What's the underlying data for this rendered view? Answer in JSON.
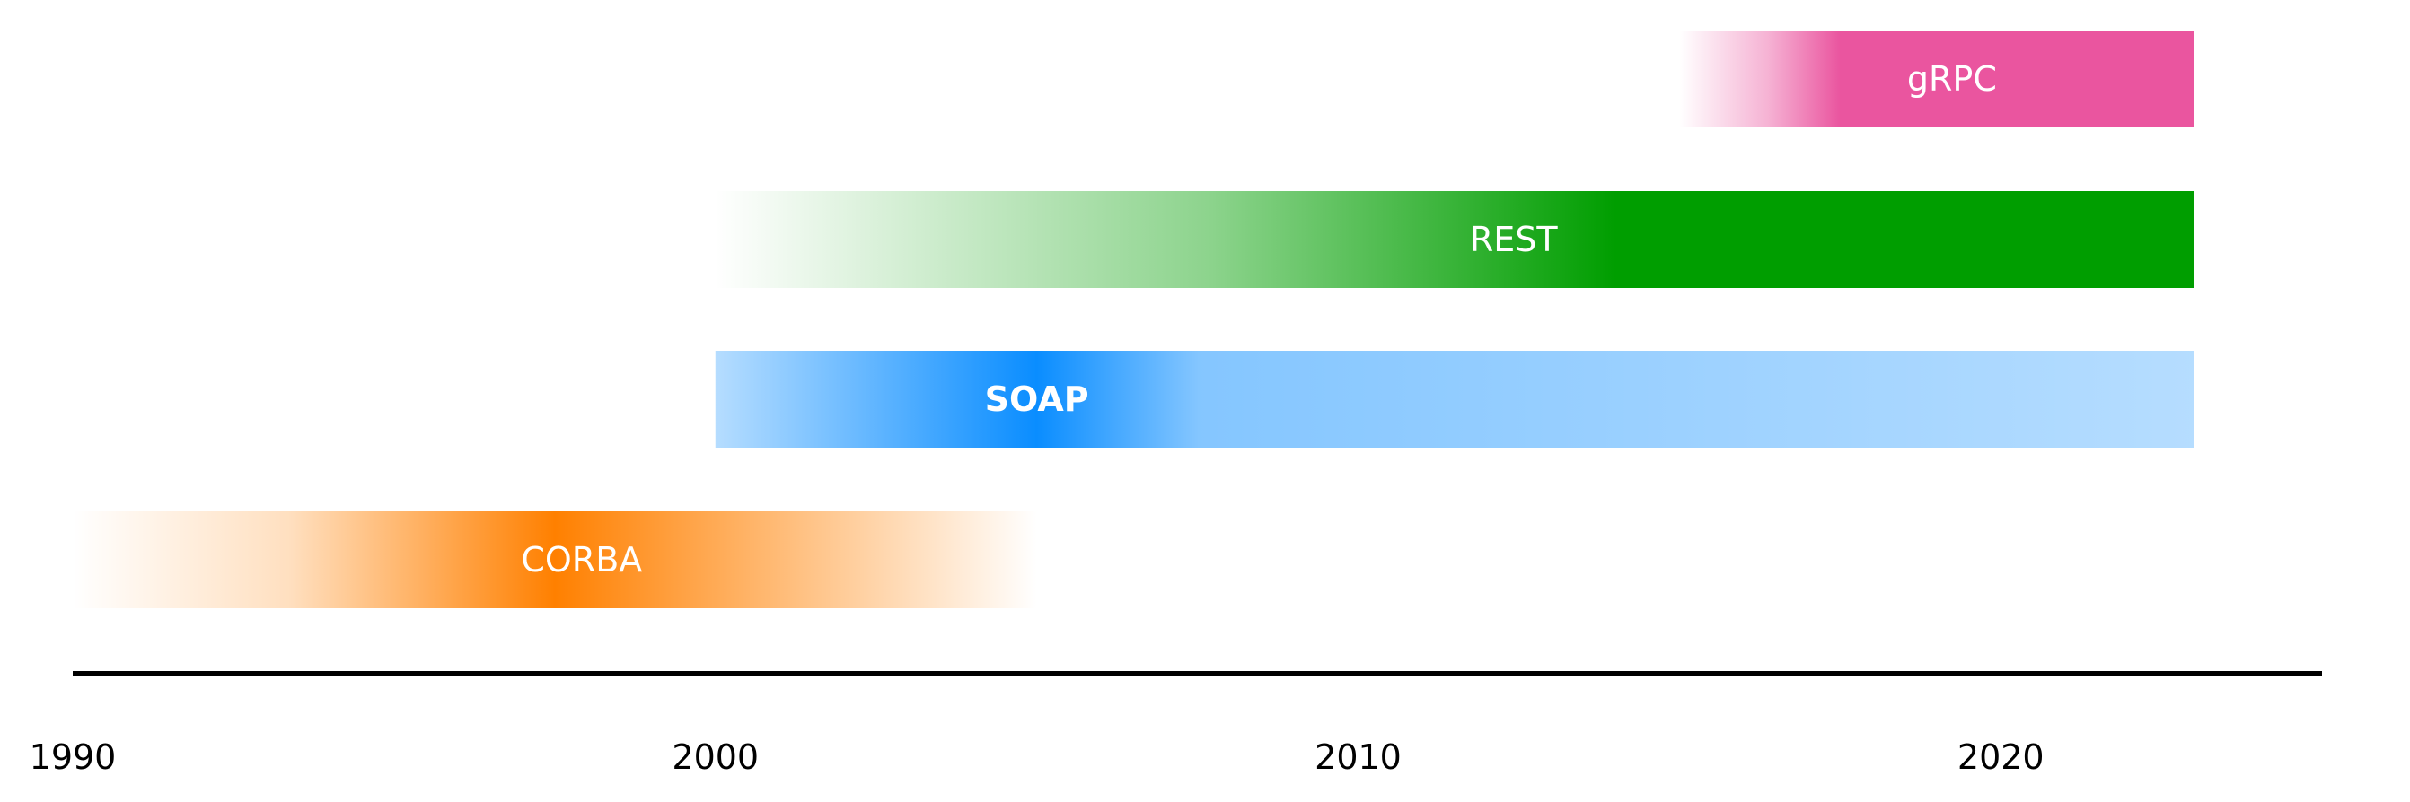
{
  "chart_data": {
    "type": "bar",
    "orientation": "horizontal",
    "grid": false,
    "xlabel": "",
    "ylabel": "",
    "xlim": [
      1990,
      2025
    ],
    "x_ticks": [
      "1990",
      "2000",
      "2010",
      "2020"
    ],
    "bars": [
      {
        "label": "CORBA",
        "start": 1990,
        "end": 2005,
        "peak": 1997.5,
        "color": "#ff8000",
        "label_bold": false,
        "fade": "both"
      },
      {
        "label": "SOAP",
        "start": 2000,
        "end": 2023,
        "peak": 2005,
        "color": "#0a8dff",
        "label_bold": true,
        "fade": "soap"
      },
      {
        "label": "REST",
        "start": 2000,
        "end": 2023,
        "peak": 2014,
        "color": "#009e00",
        "label_bold": false,
        "fade": "left"
      },
      {
        "label": "gRPC",
        "start": 2015,
        "end": 2023,
        "peak": 2017.5,
        "color": "#ea559f",
        "label_bold": false,
        "fade": "left"
      }
    ],
    "axis_color": "#000000"
  }
}
